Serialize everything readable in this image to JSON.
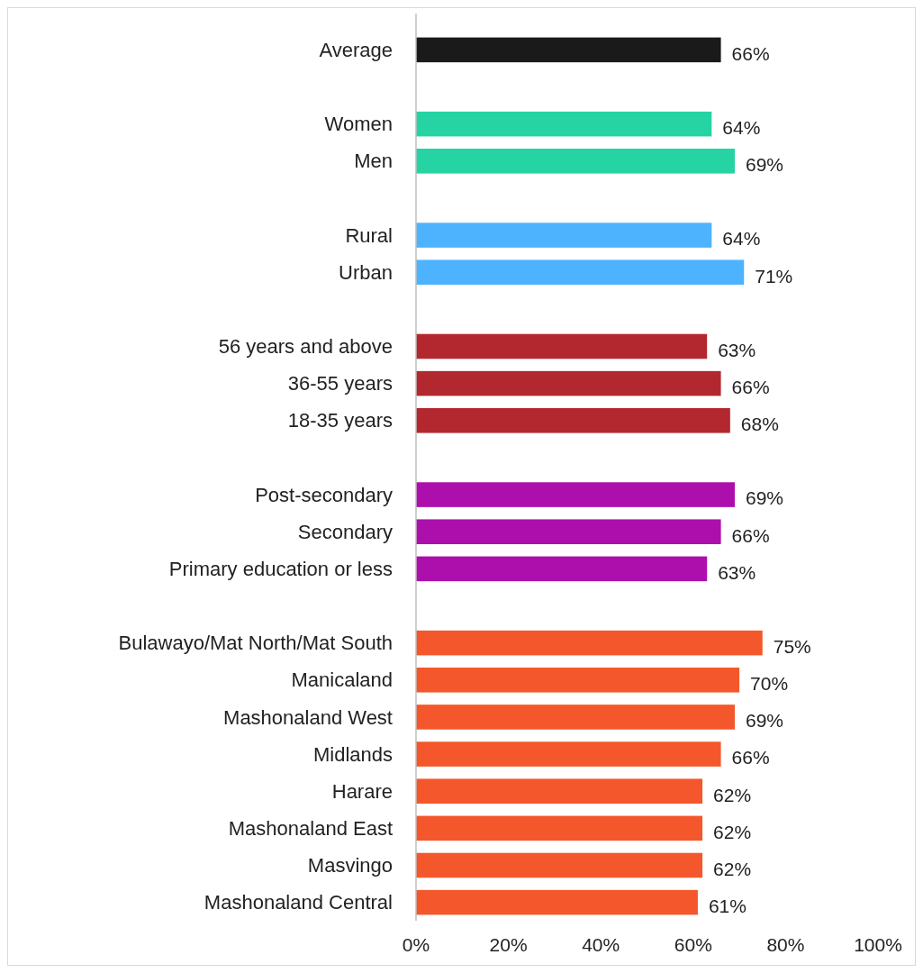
{
  "chart_data": {
    "type": "bar",
    "orientation": "horizontal",
    "categories": [
      "Average",
      null,
      "Women",
      "Men",
      null,
      "Rural",
      "Urban",
      null,
      "56 years and above",
      "36-55 years",
      "18-35 years",
      null,
      "Post-secondary",
      "Secondary",
      "Primary education or less",
      null,
      "Bulawayo/Mat North/Mat South",
      "Manicaland",
      "Mashonaland West",
      "Midlands",
      "Harare",
      "Mashonaland East",
      "Masvingo",
      "Mashonaland Central"
    ],
    "values": [
      66,
      null,
      64,
      69,
      null,
      64,
      71,
      null,
      63,
      66,
      68,
      null,
      69,
      66,
      63,
      null,
      75,
      70,
      69,
      66,
      62,
      62,
      62,
      61
    ],
    "value_labels": [
      "66%",
      null,
      "64%",
      "69%",
      null,
      "64%",
      "71%",
      null,
      "63%",
      "66%",
      "68%",
      null,
      "69%",
      "66%",
      "63%",
      null,
      "75%",
      "70%",
      "69%",
      "66%",
      "62%",
      "62%",
      "62%",
      "61%"
    ],
    "colors": [
      "#1a1a1a",
      null,
      "#26d3a3",
      "#26d3a3",
      null,
      "#4db3ff",
      "#4db3ff",
      null,
      "#b3282f",
      "#b3282f",
      "#b3282f",
      null,
      "#ad0fad",
      "#ad0fad",
      "#ad0fad",
      null,
      "#f4572b",
      "#f4572b",
      "#f4572b",
      "#f4572b",
      "#f4572b",
      "#f4572b",
      "#f4572b",
      "#f4572b"
    ],
    "xlim": [
      0,
      100
    ],
    "xticks": [
      {
        "value": 0,
        "label": "0%"
      },
      {
        "value": 20,
        "label": "20%"
      },
      {
        "value": 40,
        "label": "40%"
      },
      {
        "value": 60,
        "label": "60%"
      },
      {
        "value": 80,
        "label": "80%"
      },
      {
        "value": 100,
        "label": "100%"
      }
    ],
    "grid": false
  }
}
